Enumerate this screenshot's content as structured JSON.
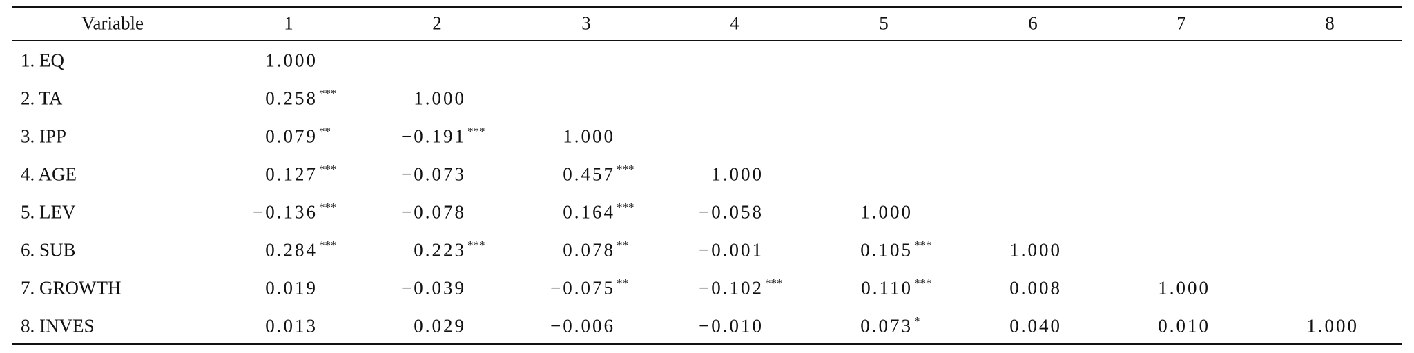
{
  "table": {
    "header": [
      "Variable",
      "1",
      "2",
      "3",
      "4",
      "5",
      "6",
      "7",
      "8"
    ],
    "rows": [
      {
        "label": "1. EQ",
        "cells": [
          {
            "value": "1.000"
          }
        ]
      },
      {
        "label": "2. TA",
        "cells": [
          {
            "value": "0.258",
            "sig": "***"
          },
          {
            "value": "1.000"
          }
        ]
      },
      {
        "label": "3. IPP",
        "cells": [
          {
            "value": "0.079",
            "sig": "**"
          },
          {
            "value": "−0.191",
            "sig": "***"
          },
          {
            "value": "1.000"
          }
        ]
      },
      {
        "label": "4. AGE",
        "cells": [
          {
            "value": "0.127",
            "sig": "***"
          },
          {
            "value": "−0.073"
          },
          {
            "value": "0.457",
            "sig": "***"
          },
          {
            "value": "1.000"
          }
        ]
      },
      {
        "label": "5. LEV",
        "cells": [
          {
            "value": "−0.136",
            "sig": "***"
          },
          {
            "value": "−0.078"
          },
          {
            "value": "0.164",
            "sig": "***"
          },
          {
            "value": "−0.058"
          },
          {
            "value": "1.000"
          }
        ]
      },
      {
        "label": "6. SUB",
        "cells": [
          {
            "value": "0.284",
            "sig": "***"
          },
          {
            "value": "0.223",
            "sig": "***"
          },
          {
            "value": "0.078",
            "sig": "**"
          },
          {
            "value": "−0.001"
          },
          {
            "value": "0.105",
            "sig": "***"
          },
          {
            "value": "1.000"
          }
        ]
      },
      {
        "label": "7. GROWTH",
        "cells": [
          {
            "value": "0.019"
          },
          {
            "value": "−0.039"
          },
          {
            "value": "−0.075",
            "sig": "**"
          },
          {
            "value": "−0.102",
            "sig": "***"
          },
          {
            "value": "0.110",
            "sig": "***"
          },
          {
            "value": "0.008"
          },
          {
            "value": "1.000"
          }
        ]
      },
      {
        "label": "8. INVES",
        "cells": [
          {
            "value": "0.013"
          },
          {
            "value": "0.029"
          },
          {
            "value": "−0.006"
          },
          {
            "value": "−0.010"
          },
          {
            "value": "0.073",
            "sig": "*"
          },
          {
            "value": "0.040"
          },
          {
            "value": "0.010"
          },
          {
            "value": "1.000"
          }
        ]
      }
    ]
  }
}
